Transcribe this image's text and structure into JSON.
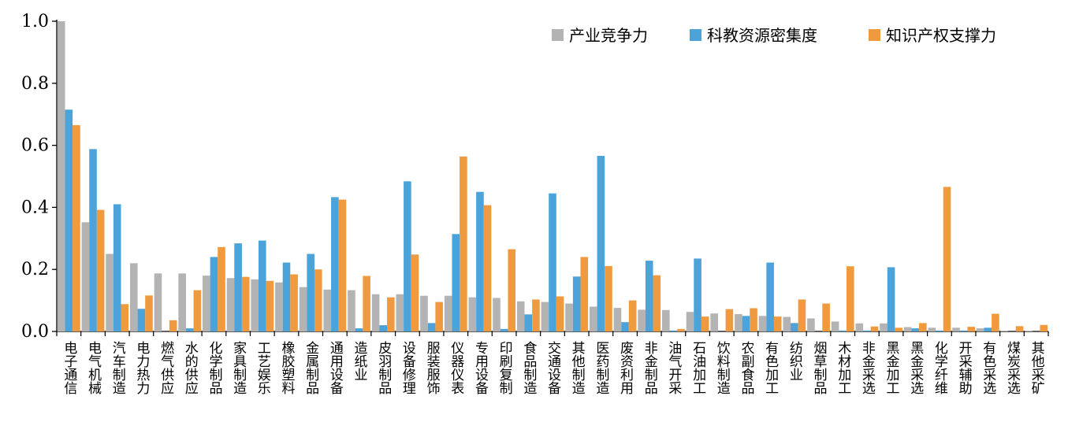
{
  "chart_data": {
    "type": "bar",
    "title": "",
    "xlabel": "",
    "ylabel": "",
    "ylim": [
      0,
      1.0
    ],
    "yticks": [
      "0.0",
      "0.2",
      "0.4",
      "0.6",
      "0.8",
      "1.0"
    ],
    "legend_position": "top-right",
    "categories": [
      "电子通信",
      "电气机械",
      "汽车制造",
      "电力热力",
      "燃气供应",
      "水的供应",
      "化学制品",
      "家具制造",
      "工艺娱乐",
      "橡胶塑料",
      "金属制品",
      "通用设备",
      "造纸业",
      "皮羽制品",
      "设备修理",
      "服装服饰",
      "仪器仪表",
      "专用设备",
      "印刷复制",
      "食品制造",
      "交通设备",
      "其他制造",
      "医药制造",
      "废资利用",
      "非金制品",
      "油气开采",
      "石油加工",
      "饮料制造",
      "农副食品",
      "有色加工",
      "纺织业",
      "烟草制品",
      "木材加工",
      "非金采选",
      "黑金加工",
      "黑金采选",
      "化学纤维",
      "开采辅助",
      "有色采选",
      "煤炭采选",
      "其他采矿"
    ],
    "series": [
      {
        "name": "产业竞争力",
        "color": "#b3b3b3",
        "values": [
          1.0,
          0.352,
          0.25,
          0.22,
          0.187,
          0.187,
          0.18,
          0.172,
          0.168,
          0.158,
          0.143,
          0.135,
          0.133,
          0.12,
          0.12,
          0.115,
          0.115,
          0.11,
          0.108,
          0.097,
          0.095,
          0.09,
          0.08,
          0.076,
          0.07,
          0.069,
          0.063,
          0.058,
          0.056,
          0.05,
          0.047,
          0.042,
          0.032,
          0.026,
          0.026,
          0.014,
          0.012,
          0.012,
          0.01,
          0.002,
          0.002
        ]
      },
      {
        "name": "科教资源密集度",
        "color": "#4ba3d9",
        "values": [
          0.715,
          0.588,
          0.41,
          0.073,
          0.0,
          0.01,
          0.24,
          0.284,
          0.293,
          0.222,
          0.25,
          0.433,
          0.01,
          0.02,
          0.484,
          0.027,
          0.314,
          0.45,
          0.008,
          0.055,
          0.445,
          0.177,
          0.566,
          0.03,
          0.228,
          0.003,
          0.235,
          0.0,
          0.05,
          0.222,
          0.027,
          0.0,
          0.003,
          0.003,
          0.207,
          0.01,
          0.003,
          0.003,
          0.012,
          0.0,
          0.0
        ]
      },
      {
        "name": "知识产权支撑力",
        "color": "#ef9a3f",
        "values": [
          0.665,
          0.392,
          0.088,
          0.116,
          0.036,
          0.133,
          0.272,
          0.176,
          0.163,
          0.184,
          0.2,
          0.425,
          0.179,
          0.11,
          0.248,
          0.095,
          0.564,
          0.407,
          0.265,
          0.103,
          0.113,
          0.24,
          0.211,
          0.1,
          0.181,
          0.008,
          0.048,
          0.072,
          0.075,
          0.048,
          0.103,
          0.09,
          0.21,
          0.016,
          0.012,
          0.027,
          0.466,
          0.015,
          0.057,
          0.017,
          0.021
        ]
      }
    ]
  }
}
